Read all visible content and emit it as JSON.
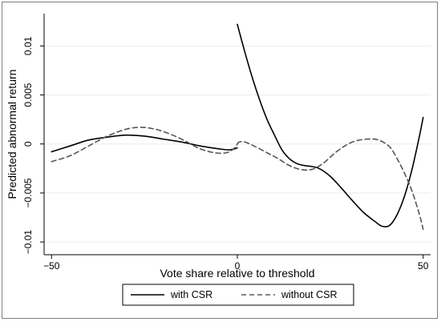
{
  "chart_data": {
    "type": "line",
    "title": "",
    "xlabel": "Vote share relative to threshold",
    "ylabel": "Predicted abnormal return",
    "xlim": [
      -52,
      52
    ],
    "ylim": [
      -0.0113,
      0.0133
    ],
    "xticks": [
      -50,
      0,
      50
    ],
    "xtick_labels": [
      "−50",
      "0",
      "50"
    ],
    "yticks": [
      -0.01,
      -0.005,
      0,
      0.005,
      0.01
    ],
    "ytick_labels": [
      "−0.01",
      "−0.005",
      "0",
      "0.005",
      "0.01"
    ],
    "grid": true,
    "legend_position": "bottom",
    "series": [
      {
        "name": "with CSR",
        "style": "solid",
        "color": "#000000",
        "segments": [
          [
            [
              -50,
              -0.0008
            ],
            [
              -45,
              -0.0002
            ],
            [
              -40,
              0.0004
            ],
            [
              -35,
              0.0007
            ],
            [
              -30,
              0.0009
            ],
            [
              -25,
              0.0008
            ],
            [
              -20,
              0.0005
            ],
            [
              -15,
              0.0002
            ],
            [
              -10,
              -0.0002
            ],
            [
              -5,
              -0.0005
            ],
            [
              -2,
              -0.0006
            ],
            [
              0,
              -0.0004
            ]
          ],
          [
            [
              0,
              0.0122
            ],
            [
              2,
              0.0094
            ],
            [
              4,
              0.0068
            ],
            [
              6,
              0.0045
            ],
            [
              8,
              0.0025
            ],
            [
              10,
              0.0009
            ],
            [
              12,
              -0.0006
            ],
            [
              14,
              -0.0015
            ],
            [
              16,
              -0.002
            ],
            [
              18,
              -0.0022
            ],
            [
              20,
              -0.0023
            ],
            [
              22,
              -0.0025
            ],
            [
              25,
              -0.0033
            ],
            [
              28,
              -0.0045
            ],
            [
              31,
              -0.0058
            ],
            [
              34,
              -0.007
            ],
            [
              37,
              -0.0079
            ],
            [
              39,
              -0.0084
            ],
            [
              41,
              -0.0083
            ],
            [
              43,
              -0.0072
            ],
            [
              45,
              -0.0053
            ],
            [
              47,
              -0.0026
            ],
            [
              49,
              0.0008
            ],
            [
              50,
              0.0027
            ]
          ]
        ]
      },
      {
        "name": "without CSR",
        "style": "dashed",
        "color": "#555555",
        "segments": [
          [
            [
              -50,
              -0.0018
            ],
            [
              -45,
              -0.0012
            ],
            [
              -40,
              -0.0002
            ],
            [
              -35,
              0.0008
            ],
            [
              -30,
              0.0015
            ],
            [
              -26,
              0.0017
            ],
            [
              -22,
              0.0015
            ],
            [
              -18,
              0.001
            ],
            [
              -14,
              0.0003
            ],
            [
              -10,
              -0.0005
            ],
            [
              -6,
              -0.0009
            ],
            [
              -3,
              -0.0009
            ],
            [
              -1,
              -0.0005
            ],
            [
              0,
              0
            ]
          ],
          [
            [
              0,
              0
            ],
            [
              0.5,
              0.0002
            ],
            [
              2,
              0.0002
            ],
            [
              5,
              -0.0003
            ],
            [
              8,
              -0.0009
            ],
            [
              11,
              -0.0015
            ],
            [
              14,
              -0.0022
            ],
            [
              17,
              -0.0026
            ],
            [
              20,
              -0.0026
            ],
            [
              23,
              -0.002
            ],
            [
              27,
              -0.0007
            ],
            [
              31,
              0.0002
            ],
            [
              35,
              0.0005
            ],
            [
              38,
              0.0004
            ],
            [
              41,
              -0.0003
            ],
            [
              43,
              -0.0015
            ],
            [
              45,
              -0.003
            ],
            [
              47,
              -0.0048
            ],
            [
              49,
              -0.0072
            ],
            [
              50,
              -0.0087
            ]
          ]
        ]
      }
    ]
  }
}
